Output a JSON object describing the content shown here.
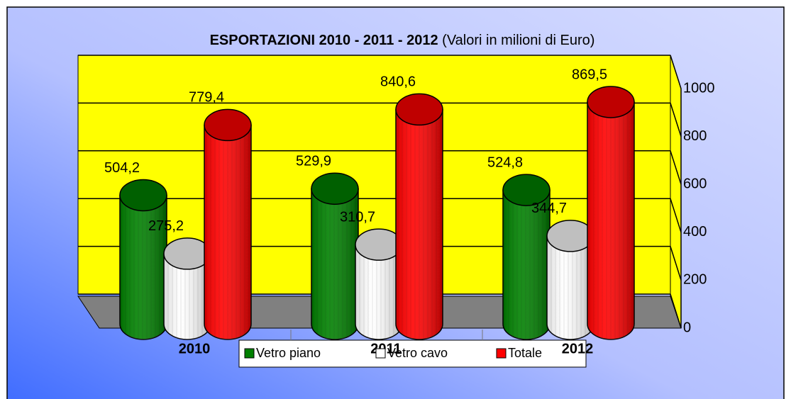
{
  "chart_data": {
    "type": "bar3d",
    "title": "ESPORTAZIONI 2010 - 2011 - 2012",
    "subtitle": "(Valori in milioni di Euro)",
    "categories": [
      "2010",
      "2011",
      "2012"
    ],
    "series": [
      {
        "name": "Vetro piano",
        "color": "#008000",
        "values": [
          504.2,
          529.9,
          524.8
        ],
        "value_labels": [
          "504,2",
          "529,9",
          "524,8"
        ]
      },
      {
        "name": "Vetro cavo",
        "color": "#ffffff",
        "values": [
          275.2,
          310.7,
          344.7
        ],
        "value_labels": [
          "275,2",
          "310,7",
          "344,7"
        ]
      },
      {
        "name": "Totale",
        "color": "#ff0000",
        "values": [
          779.4,
          840.6,
          869.5
        ],
        "value_labels": [
          "779,4",
          "840,6",
          "869,5"
        ]
      }
    ],
    "ylim": [
      0,
      1000
    ],
    "yticks": [
      0,
      200,
      400,
      600,
      800,
      1000
    ],
    "grid": true,
    "wall_color": "#ffff00",
    "floor_color": "#808080"
  }
}
